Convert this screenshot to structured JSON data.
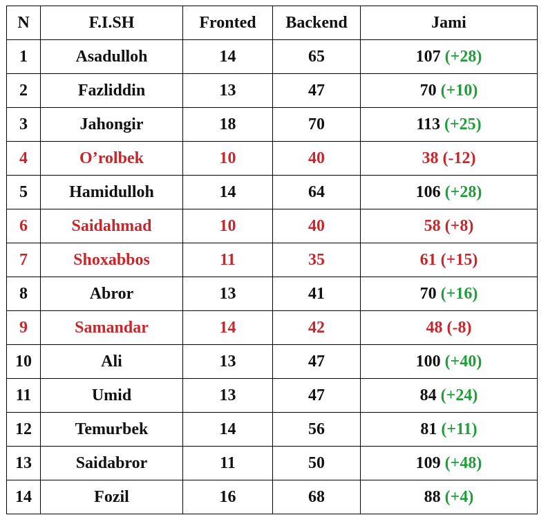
{
  "table": {
    "headers": {
      "n": "N",
      "name": "F.I.SH",
      "frontend": "Fronted",
      "backend": "Backend",
      "total": "Jami"
    },
    "colors": {
      "text": "#111111",
      "danger": "#c8262a",
      "positive_delta": "#1f9e3a"
    },
    "rows": [
      {
        "n": "1",
        "name": "Asadulloh",
        "frontend": "14",
        "backend": "65",
        "total": "107",
        "delta": "(+28)",
        "danger": false
      },
      {
        "n": "2",
        "name": "Fazliddin",
        "frontend": "13",
        "backend": "47",
        "total": "70",
        "delta": "(+10)",
        "danger": false
      },
      {
        "n": "3",
        "name": "Jahongir",
        "frontend": "18",
        "backend": "70",
        "total": "113",
        "delta": "(+25)",
        "danger": false
      },
      {
        "n": "4",
        "name": "O’rolbek",
        "frontend": "10",
        "backend": "40",
        "total": "38",
        "delta": "(-12)",
        "danger": true
      },
      {
        "n": "5",
        "name": "Hamidulloh",
        "frontend": "14",
        "backend": "64",
        "total": "106",
        "delta": "(+28)",
        "danger": false
      },
      {
        "n": "6",
        "name": "Saidahmad",
        "frontend": "10",
        "backend": "40",
        "total": "58",
        "delta": "(+8)",
        "danger": true
      },
      {
        "n": "7",
        "name": "Shoxabbos",
        "frontend": "11",
        "backend": "35",
        "total": "61",
        "delta": "(+15)",
        "danger": true
      },
      {
        "n": "8",
        "name": "Abror",
        "frontend": "13",
        "backend": "41",
        "total": "70",
        "delta": "(+16)",
        "danger": false
      },
      {
        "n": "9",
        "name": "Samandar",
        "frontend": "14",
        "backend": "42",
        "total": "48",
        "delta": "(-8)",
        "danger": true
      },
      {
        "n": "10",
        "name": "Ali",
        "frontend": "13",
        "backend": "47",
        "total": "100",
        "delta": "(+40)",
        "danger": false
      },
      {
        "n": "11",
        "name": "Umid",
        "frontend": "13",
        "backend": "47",
        "total": "84",
        "delta": "(+24)",
        "danger": false
      },
      {
        "n": "12",
        "name": "Temurbek",
        "frontend": "14",
        "backend": "56",
        "total": "81",
        "delta": "(+11)",
        "danger": false
      },
      {
        "n": "13",
        "name": "Saidabror",
        "frontend": "11",
        "backend": "50",
        "total": "109",
        "delta": "(+48)",
        "danger": false
      },
      {
        "n": "14",
        "name": "Fozil",
        "frontend": "16",
        "backend": "68",
        "total": "88",
        "delta": "(+4)",
        "danger": false
      }
    ]
  }
}
